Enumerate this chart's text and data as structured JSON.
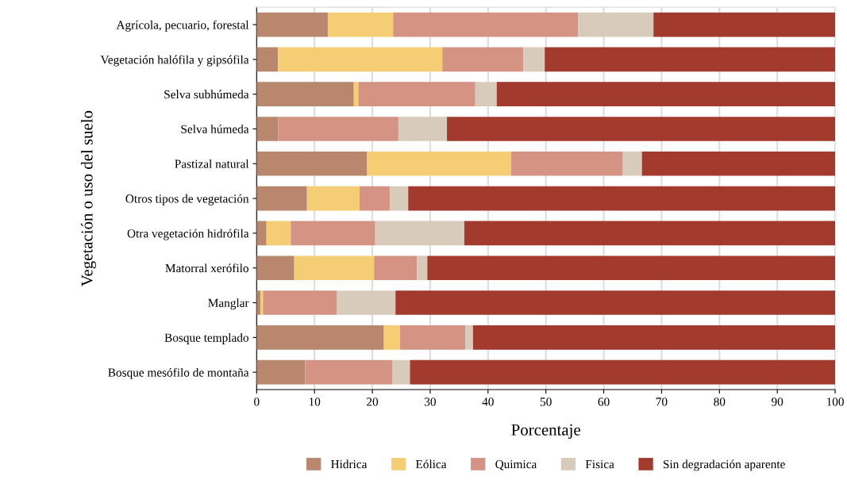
{
  "chart_data": {
    "type": "bar",
    "orientation": "horizontal",
    "stacked": true,
    "xlabel": "Porcentaje",
    "ylabel": "Vegetación o uso del suelo",
    "categories": [
      "Agrícola, pecuario, forestal",
      "Vegetación halófila y gipsófila",
      "Selva subhúmeda",
      "Selva húmeda",
      "Pastizal natural",
      "Otros tipos de vegetación",
      "Otra vegetación hidrófila",
      "Matorral xerófilo",
      "Manglar",
      "Bosque templado",
      "Bosque mesófilo de montaña"
    ],
    "series": [
      {
        "name": "Hidrica",
        "color": "#b8876d",
        "values": [
          12.3,
          3.7,
          16.8,
          3.7,
          19.1,
          8.7,
          1.7,
          6.5,
          0.7,
          22.0,
          8.4
        ]
      },
      {
        "name": "Eólica",
        "color": "#f5cd74",
        "values": [
          11.3,
          28.4,
          0.8,
          0,
          24.9,
          9.1,
          4.2,
          13.8,
          0.4,
          2.8,
          0
        ]
      },
      {
        "name": "Quimica",
        "color": "#d49383",
        "values": [
          32.0,
          14.0,
          20.2,
          20.8,
          19.3,
          5.2,
          14.6,
          7.4,
          12.8,
          11.3,
          15.1
        ]
      },
      {
        "name": "Fisica",
        "color": "#d9cbbb",
        "values": [
          13.0,
          3.7,
          3.7,
          8.4,
          3.3,
          3.2,
          15.4,
          1.8,
          10.1,
          1.3,
          3.0
        ]
      },
      {
        "name": "Sin degradación aparente",
        "color": "#a23a2e",
        "values": [
          31.4,
          50.3,
          58.5,
          67.1,
          33.4,
          73.8,
          64.1,
          70.5,
          76.0,
          62.6,
          73.5
        ]
      }
    ],
    "xlim": [
      0,
      100
    ],
    "xticks": [
      0,
      10,
      20,
      30,
      40,
      50,
      60,
      70,
      80,
      90,
      100
    ],
    "grid": "x",
    "legend": "bottom"
  }
}
